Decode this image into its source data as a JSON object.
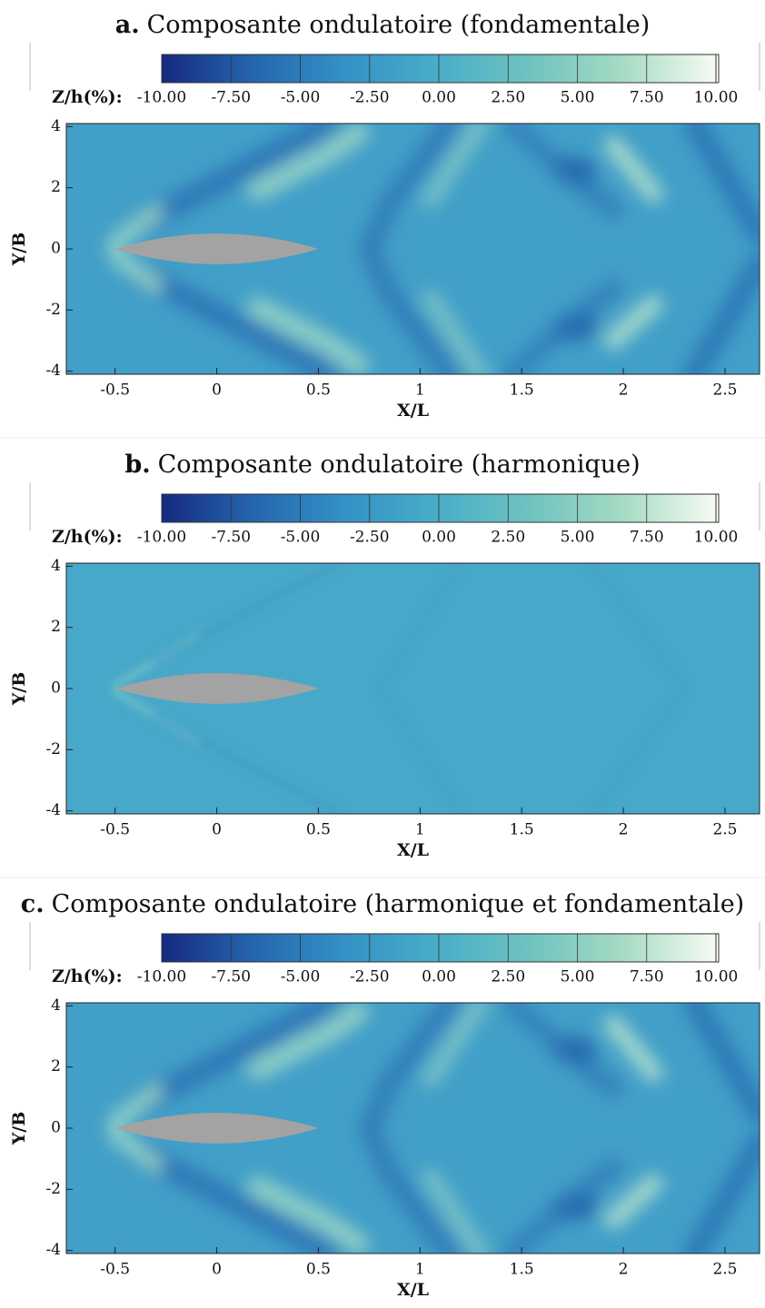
{
  "chart_data": [
    {
      "type": "contour",
      "panel_label": "a.",
      "title": "Composante ondulatoire (fondamentale)",
      "colorbar_label": "Z/h(%):",
      "colorbar_ticks": [
        {
          "value": -10,
          "label": "-10.00"
        },
        {
          "value": -7.5,
          "label": "-7.50"
        },
        {
          "value": -5,
          "label": "-5.00"
        },
        {
          "value": -2.5,
          "label": "-2.50"
        },
        {
          "value": 0,
          "label": "0.00"
        },
        {
          "value": 2.5,
          "label": "2.50"
        },
        {
          "value": 5,
          "label": "5.00"
        },
        {
          "value": 7.5,
          "label": "7.50"
        },
        {
          "value": 10,
          "label": "10.00"
        }
      ],
      "colorbar_lim": [
        -10,
        10
      ],
      "colormap": [
        "#15297f",
        "#2566ad",
        "#3592c6",
        "#49aec8",
        "#6fc3bf",
        "#a6dbc4",
        "#f6fbf4"
      ],
      "xlabel": "X/L",
      "ylabel": "Y/B",
      "xlim": [
        -0.74,
        2.67
      ],
      "ylim": [
        -4.1,
        4.1
      ],
      "xticks": [
        -0.5,
        0,
        0.5,
        1,
        1.5,
        2,
        2.5
      ],
      "yticks": [
        -4,
        -2,
        0,
        2,
        4
      ]
    },
    {
      "type": "contour",
      "panel_label": "b.",
      "title": "Composante ondulatoire (harmonique)",
      "colorbar_label": "Z/h(%):",
      "colorbar_ticks": [
        {
          "value": -10,
          "label": "-10.00"
        },
        {
          "value": -7.5,
          "label": "-7.50"
        },
        {
          "value": -5,
          "label": "-5.00"
        },
        {
          "value": -2.5,
          "label": "-2.50"
        },
        {
          "value": 0,
          "label": "0.00"
        },
        {
          "value": 2.5,
          "label": "2.50"
        },
        {
          "value": 5,
          "label": "5.00"
        },
        {
          "value": 7.5,
          "label": "7.50"
        },
        {
          "value": 10,
          "label": "10.00"
        }
      ],
      "colorbar_lim": [
        -10,
        10
      ],
      "colormap": [
        "#15297f",
        "#2566ad",
        "#3592c6",
        "#49aec8",
        "#6fc3bf",
        "#a6dbc4",
        "#f6fbf4"
      ],
      "xlabel": "X/L",
      "ylabel": "Y/B",
      "xlim": [
        -0.74,
        2.67
      ],
      "ylim": [
        -4.1,
        4.1
      ],
      "xticks": [
        -0.5,
        0,
        0.5,
        1,
        1.5,
        2,
        2.5
      ],
      "yticks": [
        -4,
        -2,
        0,
        2,
        4
      ]
    },
    {
      "type": "contour",
      "panel_label": "c.",
      "title": "Composante ondulatoire (harmonique et fondamentale)",
      "colorbar_label": "Z/h(%):",
      "colorbar_ticks": [
        {
          "value": -10,
          "label": "-10.00"
        },
        {
          "value": -7.5,
          "label": "-7.50"
        },
        {
          "value": -5,
          "label": "-5.00"
        },
        {
          "value": -2.5,
          "label": "-2.50"
        },
        {
          "value": 0,
          "label": "0.00"
        },
        {
          "value": 2.5,
          "label": "2.50"
        },
        {
          "value": 5,
          "label": "5.00"
        },
        {
          "value": 7.5,
          "label": "7.50"
        },
        {
          "value": 10,
          "label": "10.00"
        }
      ],
      "colorbar_lim": [
        -10,
        10
      ],
      "colormap": [
        "#15297f",
        "#2566ad",
        "#3592c6",
        "#49aec8",
        "#6fc3bf",
        "#a6dbc4",
        "#f6fbf4"
      ],
      "xlabel": "X/L",
      "ylabel": "Y/B",
      "xlim": [
        -0.74,
        2.67
      ],
      "ylim": [
        -4.1,
        4.1
      ],
      "xticks": [
        -0.5,
        0,
        0.5,
        1,
        1.5,
        2,
        2.5
      ],
      "yticks": [
        -4,
        -2,
        0,
        2,
        4
      ]
    }
  ]
}
